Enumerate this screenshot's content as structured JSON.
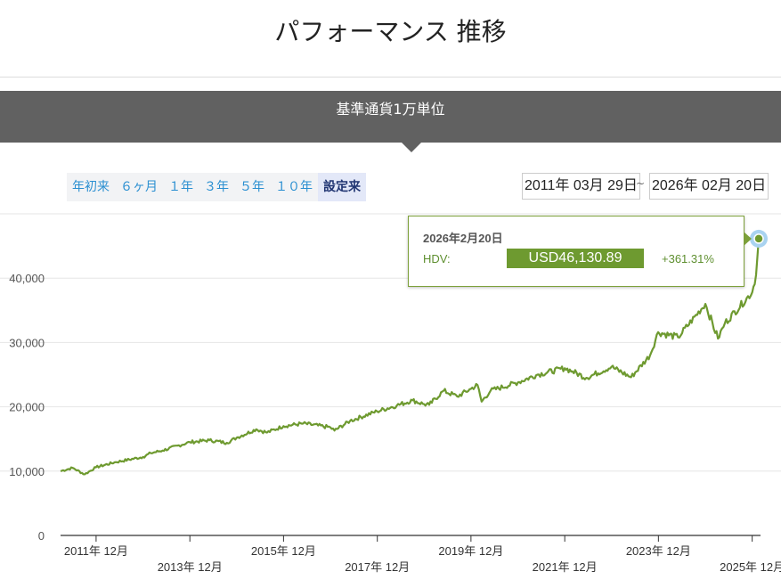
{
  "page": {
    "title": "パフォーマンス 推移"
  },
  "banner": {
    "label": "基準通貨1万単位"
  },
  "range_buttons": [
    "年初来",
    "６ヶ月",
    "１年",
    "３年",
    "５年",
    "１０年",
    "設定来"
  ],
  "active_range": "設定来",
  "date_range": {
    "from": "2011年 03月 29日",
    "separator": "~",
    "to": "2026年 02月 20日"
  },
  "tooltip": {
    "date": "2026年2月20日",
    "series": "HDV:",
    "value": "USD46,130.89",
    "change": "+361.31%"
  },
  "colors": {
    "line": "#6e9a30",
    "marker": "#6e9a30",
    "marker_halo": "#a9d3f0",
    "banner": "#616161",
    "link": "#2a8fd1"
  },
  "chart_data": {
    "type": "line",
    "title": "",
    "xlabel": "",
    "ylabel": "",
    "ylim": [
      0,
      50000
    ],
    "yticks": [
      0,
      10000,
      20000,
      30000,
      40000
    ],
    "ytick_labels": [
      "0",
      "10,000",
      "20,000",
      "30,000",
      "40,000"
    ],
    "xlim": [
      "2011-03-29",
      "2026-02-20"
    ],
    "xticks": [
      "2011-12",
      "2013-12",
      "2015-12",
      "2017-12",
      "2019-12",
      "2021-12",
      "2023-12",
      "2025-12"
    ],
    "xtick_labels": [
      "2011年 12月",
      "2013年 12月",
      "2015年 12月",
      "2017年 12月",
      "2019年 12月",
      "2021年 12月",
      "2023年 12月",
      "2025年 12月"
    ],
    "grid": true,
    "series": [
      {
        "name": "HDV",
        "points": [
          [
            "2011-03-29",
            10000
          ],
          [
            "2011-07-01",
            10500
          ],
          [
            "2011-10-03",
            9500
          ],
          [
            "2011-12-30",
            10600
          ],
          [
            "2012-06-01",
            11400
          ],
          [
            "2012-12-31",
            12200
          ],
          [
            "2013-03-01",
            12800
          ],
          [
            "2013-06-01",
            13200
          ],
          [
            "2013-12-31",
            14500
          ],
          [
            "2014-06-01",
            14800
          ],
          [
            "2014-10-15",
            14400
          ],
          [
            "2014-12-31",
            15200
          ],
          [
            "2015-06-01",
            16500
          ],
          [
            "2015-08-25",
            16000
          ],
          [
            "2015-12-31",
            17000
          ],
          [
            "2016-06-01",
            17400
          ],
          [
            "2016-12-30",
            16800
          ],
          [
            "2017-01-31",
            16300
          ],
          [
            "2017-06-01",
            17800
          ],
          [
            "2017-12-29",
            19300
          ],
          [
            "2018-06-01",
            20200
          ],
          [
            "2018-10-01",
            21000
          ],
          [
            "2018-12-31",
            20400
          ],
          [
            "2019-02-08",
            20300
          ],
          [
            "2019-06-01",
            22500
          ],
          [
            "2019-09-15",
            21600
          ],
          [
            "2019-12-31",
            22800
          ],
          [
            "2020-02-20",
            23400
          ],
          [
            "2020-03-23",
            20800
          ],
          [
            "2020-06-01",
            22500
          ],
          [
            "2020-12-31",
            23800
          ],
          [
            "2021-06-01",
            25000
          ],
          [
            "2021-12-31",
            26000
          ],
          [
            "2022-03-01",
            25500
          ],
          [
            "2022-06-17",
            24500
          ],
          [
            "2022-12-30",
            26200
          ],
          [
            "2023-06-01",
            24600
          ],
          [
            "2023-10-27",
            28000
          ],
          [
            "2023-12-29",
            31600
          ],
          [
            "2024-06-01",
            30800
          ],
          [
            "2024-12-31",
            36000
          ],
          [
            "2025-04-08",
            30600
          ],
          [
            "2025-06-01",
            33000
          ],
          [
            "2025-12-31",
            37800
          ],
          [
            "2026-01-30",
            40500
          ],
          [
            "2026-02-20",
            46130.89
          ]
        ]
      }
    ]
  }
}
